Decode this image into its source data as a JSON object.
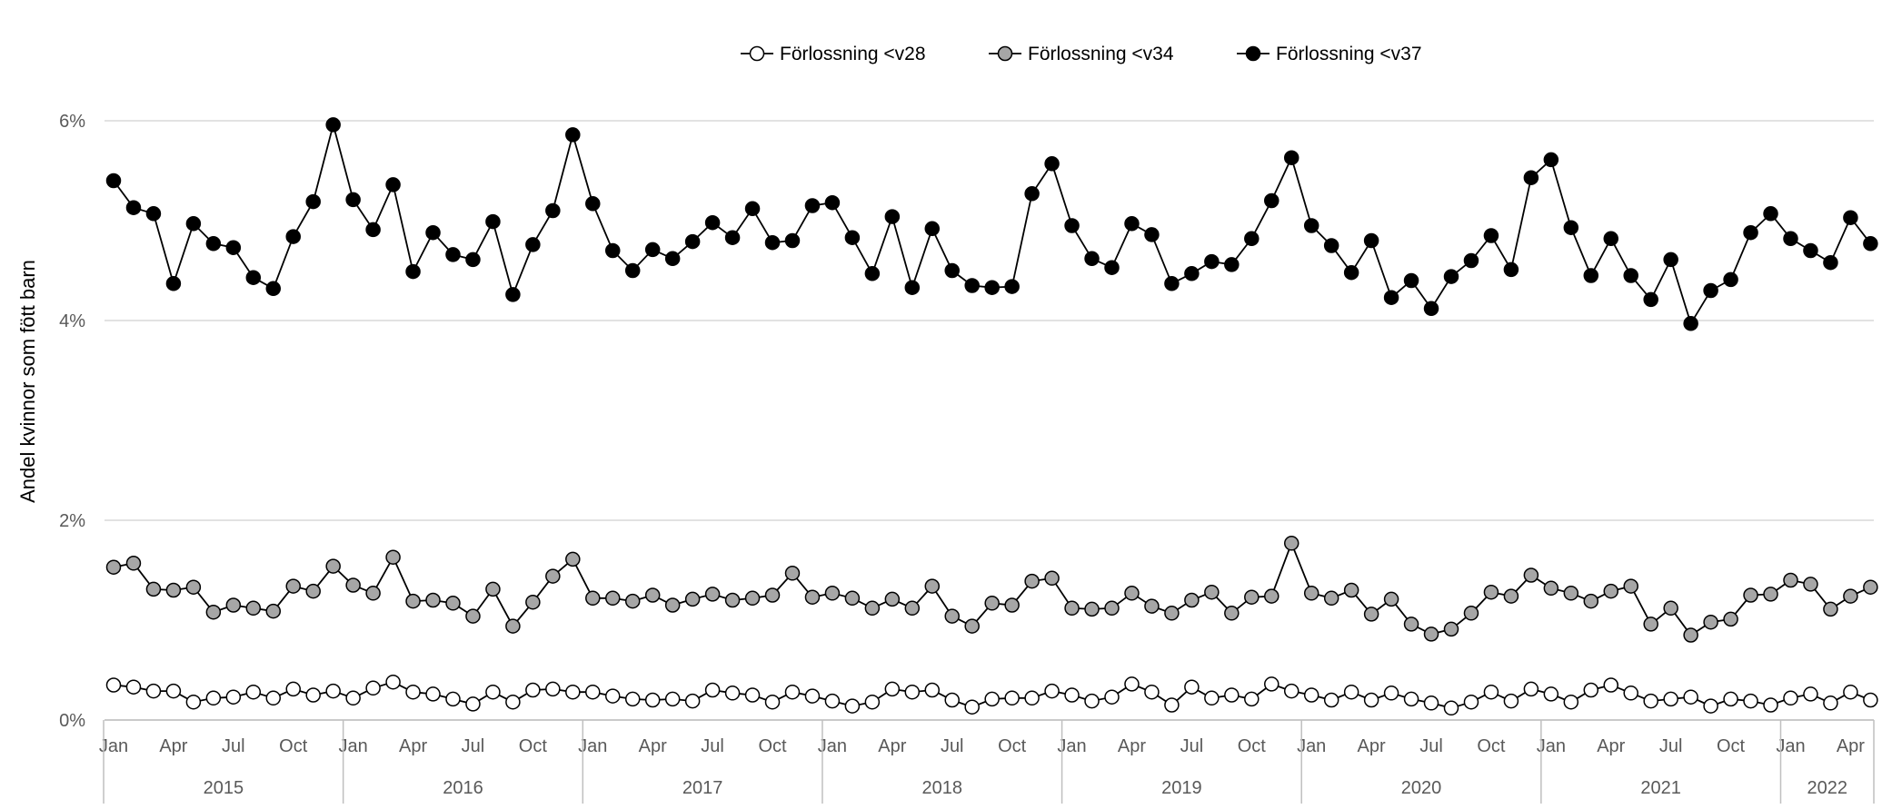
{
  "chart_data": {
    "type": "line",
    "ylabel": "Andel kvinnor som fött barn",
    "xlabel": "",
    "ylim": [
      0,
      6
    ],
    "y_ticks": [
      0,
      2,
      4,
      6
    ],
    "y_tick_labels": [
      "0%",
      "2%",
      "4%",
      "6%"
    ],
    "grid": true,
    "legend_position": "top-center",
    "month_tick_labels": [
      "Jan",
      "Apr",
      "Jul",
      "Oct"
    ],
    "years": [
      "2015",
      "2016",
      "2017",
      "2018",
      "2019",
      "2020",
      "2021",
      "2022"
    ],
    "x": [
      "2015-01",
      "2015-02",
      "2015-03",
      "2015-04",
      "2015-05",
      "2015-06",
      "2015-07",
      "2015-08",
      "2015-09",
      "2015-10",
      "2015-11",
      "2015-12",
      "2016-01",
      "2016-02",
      "2016-03",
      "2016-04",
      "2016-05",
      "2016-06",
      "2016-07",
      "2016-08",
      "2016-09",
      "2016-10",
      "2016-11",
      "2016-12",
      "2017-01",
      "2017-02",
      "2017-03",
      "2017-04",
      "2017-05",
      "2017-06",
      "2017-07",
      "2017-08",
      "2017-09",
      "2017-10",
      "2017-11",
      "2017-12",
      "2018-01",
      "2018-02",
      "2018-03",
      "2018-04",
      "2018-05",
      "2018-06",
      "2018-07",
      "2018-08",
      "2018-09",
      "2018-10",
      "2018-11",
      "2018-12",
      "2019-01",
      "2019-02",
      "2019-03",
      "2019-04",
      "2019-05",
      "2019-06",
      "2019-07",
      "2019-08",
      "2019-09",
      "2019-10",
      "2019-11",
      "2019-12",
      "2020-01",
      "2020-02",
      "2020-03",
      "2020-04",
      "2020-05",
      "2020-06",
      "2020-07",
      "2020-08",
      "2020-09",
      "2020-10",
      "2020-11",
      "2020-12",
      "2021-01",
      "2021-02",
      "2021-03",
      "2021-04",
      "2021-05",
      "2021-06",
      "2021-07",
      "2021-08",
      "2021-09",
      "2021-10",
      "2021-11",
      "2021-12",
      "2022-01",
      "2022-02",
      "2022-03",
      "2022-04",
      "2022-05"
    ],
    "series": [
      {
        "name": "Förlossning <v28",
        "fill": "#ffffff",
        "values": [
          0.35,
          0.33,
          0.29,
          0.29,
          0.18,
          0.22,
          0.23,
          0.28,
          0.22,
          0.31,
          0.25,
          0.29,
          0.22,
          0.32,
          0.38,
          0.28,
          0.26,
          0.21,
          0.16,
          0.28,
          0.18,
          0.3,
          0.31,
          0.28,
          0.28,
          0.24,
          0.21,
          0.2,
          0.21,
          0.19,
          0.3,
          0.27,
          0.25,
          0.18,
          0.28,
          0.24,
          0.19,
          0.14,
          0.18,
          0.31,
          0.28,
          0.3,
          0.2,
          0.13,
          0.21,
          0.22,
          0.22,
          0.29,
          0.25,
          0.19,
          0.23,
          0.36,
          0.28,
          0.15,
          0.33,
          0.22,
          0.25,
          0.21,
          0.36,
          0.29,
          0.25,
          0.2,
          0.28,
          0.2,
          0.27,
          0.21,
          0.17,
          0.12,
          0.18,
          0.28,
          0.19,
          0.31,
          0.26,
          0.18,
          0.3,
          0.35,
          0.27,
          0.19,
          0.21,
          0.23,
          0.14,
          0.21,
          0.19,
          0.15,
          0.22,
          0.26,
          0.17,
          0.28,
          0.2
        ]
      },
      {
        "name": "Förlossning <v34",
        "fill": "#a6a6a6",
        "values": [
          1.53,
          1.57,
          1.31,
          1.3,
          1.33,
          1.08,
          1.15,
          1.12,
          1.09,
          1.34,
          1.29,
          1.54,
          1.35,
          1.27,
          1.63,
          1.19,
          1.2,
          1.17,
          1.04,
          1.31,
          0.94,
          1.18,
          1.44,
          1.61,
          1.22,
          1.22,
          1.19,
          1.25,
          1.15,
          1.21,
          1.26,
          1.2,
          1.22,
          1.25,
          1.47,
          1.23,
          1.27,
          1.22,
          1.12,
          1.21,
          1.12,
          1.34,
          1.04,
          0.94,
          1.17,
          1.15,
          1.39,
          1.42,
          1.12,
          1.11,
          1.12,
          1.27,
          1.14,
          1.07,
          1.2,
          1.28,
          1.07,
          1.23,
          1.24,
          1.77,
          1.27,
          1.22,
          1.3,
          1.06,
          1.21,
          0.96,
          0.86,
          0.91,
          1.07,
          1.28,
          1.24,
          1.45,
          1.32,
          1.27,
          1.19,
          1.29,
          1.34,
          0.96,
          1.12,
          0.85,
          0.98,
          1.01,
          1.25,
          1.26,
          1.4,
          1.36,
          1.11,
          1.24,
          1.33
        ]
      },
      {
        "name": "Förlossning <v37",
        "fill": "#000000",
        "values": [
          5.4,
          5.13,
          5.07,
          4.37,
          4.97,
          4.77,
          4.73,
          4.43,
          4.32,
          4.84,
          5.19,
          5.96,
          5.21,
          4.91,
          5.36,
          4.49,
          4.88,
          4.66,
          4.61,
          4.99,
          4.26,
          4.76,
          5.1,
          5.86,
          5.17,
          4.7,
          4.5,
          4.71,
          4.62,
          4.79,
          4.98,
          4.83,
          5.12,
          4.78,
          4.8,
          5.15,
          5.18,
          4.83,
          4.47,
          5.04,
          4.33,
          4.92,
          4.5,
          4.35,
          4.33,
          4.34,
          5.27,
          5.57,
          4.95,
          4.62,
          4.53,
          4.97,
          4.86,
          4.37,
          4.47,
          4.59,
          4.56,
          4.82,
          5.2,
          5.63,
          4.95,
          4.75,
          4.48,
          4.8,
          4.23,
          4.4,
          4.12,
          4.44,
          4.6,
          4.85,
          4.51,
          5.43,
          5.61,
          4.93,
          4.45,
          4.82,
          4.45,
          4.21,
          4.61,
          3.97,
          4.3,
          4.41,
          4.88,
          5.07,
          4.82,
          4.7,
          4.58,
          5.03,
          4.77
        ]
      }
    ]
  }
}
